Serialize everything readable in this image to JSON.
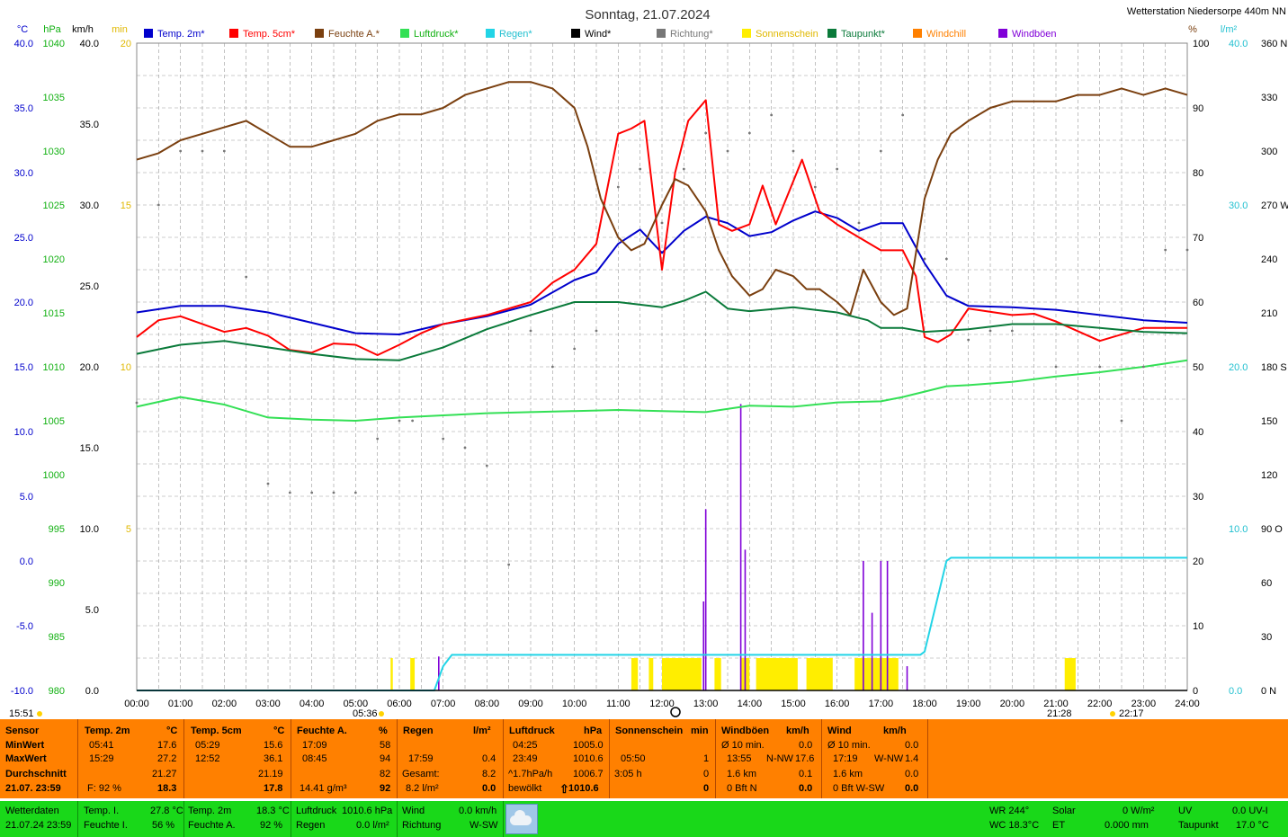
{
  "header": {
    "title": "Sonntag, 21.07.2024",
    "station": "Wetterstation Niedersorpe 440m NN"
  },
  "colors": {
    "temp2m": "#0000cc",
    "temp5cm": "#ff0000",
    "humidity": "#7a3f0f",
    "pressure": "#33e055",
    "rain": "#22d4e6",
    "wind": "#000000",
    "direction": "#777777",
    "sunshine": "#ffee00",
    "dewpoint": "#0a7a3a",
    "windchill": "#ff8000",
    "gusts": "#8000d8",
    "stats_bg": "#ff8000",
    "current_bg": "#19d819"
  },
  "legend": [
    {
      "label": "Temp. 2m*",
      "color": "#0000cc"
    },
    {
      "label": "Temp. 5cm*",
      "color": "#ff0000"
    },
    {
      "label": "Feuchte A.*",
      "color": "#7a3f0f"
    },
    {
      "label": "Luftdruck*",
      "color": "#33e055"
    },
    {
      "label": "Regen*",
      "color": "#22d4e6"
    },
    {
      "label": "Wind*",
      "color": "#000000"
    },
    {
      "label": "Richtung*",
      "color": "#777777"
    },
    {
      "label": "Sonnenschein",
      "color": "#ffee00"
    },
    {
      "label": "Taupunkt*",
      "color": "#0a7a3a"
    },
    {
      "label": "Windchill",
      "color": "#ff8000"
    },
    {
      "label": "Windböen",
      "color": "#8000d8"
    }
  ],
  "axis_units": {
    "temp": "°C",
    "pressure": "hPa",
    "wind": "km/h",
    "sun": "min",
    "humidity": "%",
    "rain": "l/m²"
  },
  "axes": {
    "temp": [
      "40.0",
      "35.0",
      "30.0",
      "25.0",
      "20.0",
      "15.0",
      "10.0",
      "5.0",
      "0.0",
      "-5.0",
      "-10.0"
    ],
    "pressure": [
      "1040",
      "1035",
      "1030",
      "1025",
      "1020",
      "1015",
      "1010",
      "1005",
      "1000",
      "995",
      "990",
      "985",
      "980"
    ],
    "wind": [
      "40.0",
      "35.0",
      "30.0",
      "25.0",
      "20.0",
      "15.0",
      "10.0",
      "5.0",
      "0.0"
    ],
    "sun": [
      "20",
      "15",
      "10",
      "5"
    ],
    "humidity": [
      "100",
      "90",
      "80",
      "70",
      "60",
      "50",
      "40",
      "30",
      "20",
      "10",
      "0"
    ],
    "rain": [
      "40.0",
      "30.0",
      "20.0",
      "10.0",
      "0.0"
    ],
    "direction": [
      "360 N",
      "330",
      "300",
      "270 W",
      "240",
      "210",
      "180 S",
      "150",
      "120",
      "90 O",
      "60",
      "30",
      "0 N"
    ],
    "time": [
      "00:00",
      "01:00",
      "02:00",
      "03:00",
      "04:00",
      "05:00",
      "06:00",
      "07:00",
      "08:00",
      "09:00",
      "10:00",
      "11:00",
      "12:00",
      "13:00",
      "14:00",
      "15:00",
      "16:00",
      "17:00",
      "18:00",
      "19:00",
      "20:00",
      "21:00",
      "22:00",
      "23:00",
      "24:00"
    ]
  },
  "sun_times": {
    "left": "15:51",
    "sunrise": "05:36",
    "moon_right": "21:28",
    "right": "22:17"
  },
  "chart_data": {
    "type": "line",
    "x_unit": "hour",
    "xlim": [
      0,
      24
    ],
    "series": [
      {
        "name": "Temp. 2m*",
        "axis": "°C",
        "ylim": [
          -10,
          40
        ],
        "x": [
          0,
          1,
          2,
          3,
          4,
          5,
          6,
          7,
          8,
          9,
          10,
          10.5,
          11,
          11.5,
          12,
          12.5,
          13,
          13.5,
          14,
          14.5,
          15,
          15.5,
          16,
          16.5,
          17,
          17.5,
          18,
          18.5,
          19,
          20,
          21,
          22,
          23,
          24
        ],
        "values": [
          19.2,
          19.7,
          19.7,
          19.2,
          18.4,
          17.6,
          17.5,
          18.3,
          18.9,
          19.8,
          21.7,
          22.3,
          24.5,
          25.6,
          23.8,
          25.5,
          26.6,
          26.1,
          25.1,
          25.4,
          26.3,
          27.0,
          26.5,
          25.5,
          26.1,
          26.1,
          23.0,
          20.5,
          19.7,
          19.6,
          19.4,
          19.0,
          18.6,
          18.4
        ]
      },
      {
        "name": "Temp. 5cm*",
        "axis": "°C",
        "ylim": [
          -10,
          40
        ],
        "x": [
          0,
          0.5,
          1,
          2,
          2.5,
          3,
          3.5,
          4,
          4.5,
          5,
          5.5,
          6,
          6.5,
          7,
          8,
          9,
          9.5,
          10,
          10.5,
          11,
          11.3,
          11.6,
          12,
          12.3,
          12.6,
          13,
          13.3,
          13.6,
          14,
          14.3,
          14.6,
          14.9,
          15.2,
          15.6,
          16,
          16.5,
          17,
          17.5,
          17.8,
          18,
          18.3,
          18.6,
          19,
          20,
          20.5,
          21,
          22,
          23,
          24
        ],
        "values": [
          17.3,
          18.6,
          18.9,
          17.7,
          18.0,
          17.4,
          16.3,
          16.1,
          16.8,
          16.7,
          15.9,
          16.7,
          17.6,
          18.3,
          19.0,
          20.0,
          21.5,
          22.5,
          24.5,
          33.0,
          33.4,
          34.0,
          22.5,
          30.0,
          34.0,
          35.6,
          26.0,
          25.5,
          26.0,
          29.0,
          26.0,
          28.5,
          31.0,
          27.0,
          26.0,
          25.0,
          24.0,
          24.0,
          22.0,
          17.3,
          16.9,
          17.5,
          19.5,
          19.0,
          19.1,
          18.5,
          17.0,
          18.0,
          18.0
        ]
      },
      {
        "name": "Feuchte A.*",
        "axis": "%",
        "ylim": [
          0,
          100
        ],
        "x": [
          0,
          0.5,
          1,
          1.5,
          2,
          2.5,
          3,
          3.5,
          4,
          4.5,
          5,
          5.5,
          6,
          6.5,
          7,
          7.5,
          8,
          8.5,
          9,
          9.5,
          10,
          10.3,
          10.6,
          11,
          11.3,
          11.6,
          12,
          12.3,
          12.6,
          13,
          13.3,
          13.6,
          14,
          14.3,
          14.6,
          15,
          15.3,
          15.6,
          16,
          16.3,
          16.6,
          17,
          17.3,
          17.6,
          18,
          18.3,
          18.6,
          19,
          19.5,
          20,
          20.5,
          21,
          21.5,
          22,
          22.5,
          23,
          23.5,
          24
        ],
        "values": [
          82.0,
          83.0,
          85.0,
          86.0,
          87.0,
          88.0,
          86.0,
          84.0,
          84.0,
          85.0,
          86.0,
          88.0,
          89.0,
          89.0,
          90.0,
          92.0,
          93.0,
          94.0,
          94.0,
          93.0,
          90.0,
          84.0,
          76.0,
          70.0,
          68.0,
          69.0,
          75.0,
          79.0,
          78.0,
          74.0,
          68.0,
          64.0,
          61.0,
          62.0,
          65.0,
          64.0,
          62.0,
          62.0,
          60.0,
          58.0,
          65.0,
          60.0,
          58.0,
          59.0,
          76.0,
          82.0,
          86.0,
          88.0,
          90.0,
          91.0,
          91.0,
          91.0,
          92.0,
          92.0,
          93.0,
          92.0,
          93.0,
          92.0
        ]
      },
      {
        "name": "Luftdruck*",
        "axis": "hPa",
        "ylim": [
          980,
          1040
        ],
        "x": [
          0,
          1,
          2,
          3,
          4,
          5,
          6,
          7,
          8,
          9,
          10,
          11,
          12,
          13,
          14,
          15,
          16,
          17,
          17.5,
          18,
          18.5,
          19,
          20,
          21,
          22,
          23,
          24
        ],
        "values": [
          1006.3,
          1007.2,
          1006.5,
          1005.3,
          1005.1,
          1005.0,
          1005.3,
          1005.5,
          1005.7,
          1005.8,
          1005.9,
          1006.0,
          1005.9,
          1005.8,
          1006.4,
          1006.3,
          1006.7,
          1006.8,
          1007.2,
          1007.7,
          1008.2,
          1008.3,
          1008.6,
          1009.1,
          1009.5,
          1010.0,
          1010.6
        ]
      },
      {
        "name": "Taupunkt*",
        "axis": "°C",
        "ylim": [
          -10,
          40
        ],
        "x": [
          0,
          1,
          2,
          3,
          4,
          5,
          6,
          7,
          8,
          9,
          10,
          11,
          12,
          12.5,
          13,
          13.5,
          14,
          15,
          16,
          16.7,
          17,
          17.5,
          18,
          19,
          20,
          21,
          22,
          23,
          24
        ],
        "values": [
          16.0,
          16.7,
          17.0,
          16.5,
          16.0,
          15.6,
          15.5,
          16.5,
          17.9,
          19.0,
          20.0,
          20.0,
          19.6,
          20.1,
          20.8,
          19.5,
          19.3,
          19.6,
          19.2,
          18.6,
          18.0,
          18.0,
          17.7,
          17.9,
          18.3,
          18.3,
          18.0,
          17.7,
          17.6
        ]
      },
      {
        "name": "Regen*",
        "axis": "l/m²",
        "ylim": [
          0,
          40
        ],
        "x": [
          0,
          6.8,
          7.0,
          7.2,
          17.9,
          18.0,
          18.5,
          18.6,
          24
        ],
        "values": [
          0,
          0,
          1.5,
          2.2,
          2.2,
          2.4,
          8.0,
          8.2,
          8.2
        ]
      },
      {
        "name": "Wind*",
        "axis": "km/h",
        "ylim": [
          0,
          40
        ],
        "x": [
          0,
          24
        ],
        "values": [
          0,
          0
        ]
      },
      {
        "name": "Richtung*",
        "axis": "°",
        "ylim": [
          0,
          360
        ],
        "x": [
          0,
          0.5,
          1,
          1.5,
          2,
          2.5,
          3,
          3.5,
          4,
          4.5,
          5,
          5.5,
          6,
          6.3,
          7,
          7.5,
          8,
          8.5,
          9,
          9.5,
          10,
          10.5,
          11,
          11.5,
          12,
          12.5,
          13,
          13.5,
          14,
          14.5,
          15,
          15.5,
          16,
          16.5,
          17,
          17.5,
          18,
          18.5,
          19,
          19.5,
          20,
          21,
          22,
          22.5,
          23,
          23.5,
          24
        ],
        "values": [
          160,
          270,
          300,
          300,
          300,
          230,
          115,
          110,
          110,
          110,
          110,
          140,
          150,
          150,
          140,
          135,
          125,
          70,
          200,
          180,
          190,
          200,
          280,
          290,
          260,
          290,
          310,
          300,
          310,
          320,
          300,
          280,
          290,
          260,
          300,
          320,
          240,
          240,
          195,
          200,
          200,
          180,
          180,
          150,
          180,
          245,
          245
        ]
      }
    ],
    "sunshine_periods": [
      [
        5.8,
        5.85
      ],
      [
        6.25,
        6.35
      ],
      [
        11.3,
        11.45
      ],
      [
        11.7,
        11.8
      ],
      [
        12.0,
        12.9
      ],
      [
        13.2,
        13.35
      ],
      [
        13.8,
        14.0
      ],
      [
        14.15,
        15.1
      ],
      [
        15.3,
        15.9
      ],
      [
        16.4,
        17.4
      ],
      [
        21.2,
        21.45
      ]
    ],
    "gusts": [
      {
        "x": 6.9,
        "value": 2.1
      },
      {
        "x": 12.95,
        "value": 5.5
      },
      {
        "x": 13.0,
        "value": 11.2
      },
      {
        "x": 13.8,
        "value": 17.7
      },
      {
        "x": 13.9,
        "value": 8.7
      },
      {
        "x": 16.6,
        "value": 8.0
      },
      {
        "x": 16.8,
        "value": 4.8
      },
      {
        "x": 17.0,
        "value": 8.0
      },
      {
        "x": 17.15,
        "value": 8.0
      },
      {
        "x": 17.6,
        "value": 1.5
      }
    ]
  },
  "stats": {
    "sensor": {
      "title": "Sensor",
      "rows": [
        "MinWert",
        "MaxWert",
        "Durchschnitt"
      ],
      "date": "21.07. 23:59"
    },
    "temp2m": {
      "title": "Temp. 2m",
      "unit": "°C",
      "min_time": "05:41",
      "min": "17.6",
      "max_time": "15:29",
      "max": "27.2",
      "avg": "21.27",
      "extra": "F: 92 %",
      "current": "18.3"
    },
    "temp5cm": {
      "title": "Temp. 5cm",
      "unit": "°C",
      "min_time": "05:29",
      "min": "15.6",
      "max_time": "12:52",
      "max": "36.1",
      "avg": "21.19",
      "current": "17.8"
    },
    "humidity": {
      "title": "Feuchte A.",
      "unit": "%",
      "min_time": "17:09",
      "min": "58",
      "max_time": "08:45",
      "max": "94",
      "avg": "82",
      "abs": "14.41 g/m³",
      "current": "92"
    },
    "rain": {
      "title": "Regen",
      "unit": "l/m²",
      "max_time": "17:59",
      "max": "0.4",
      "total_label": "Gesamt:",
      "total": "8.2",
      "rate": "8.2 l/m²",
      "current": "0.0"
    },
    "pressure": {
      "title": "Luftdruck",
      "unit": "hPa",
      "min_time": "04:25",
      "min": "1005.0",
      "max_time": "23:49",
      "max": "1010.6",
      "trend_label": "^1.7hPa/h",
      "trend": "1006.7",
      "forecast": "bewölkt",
      "current_arrow": "⇧",
      "current": "1010.6"
    },
    "sunshine": {
      "title": "Sonnenschein",
      "unit": "min",
      "max_time": "05:50",
      "max": "1",
      "total": "3:05 h",
      "total_val": "0",
      "current": "0"
    },
    "gusts": {
      "title": "Windböen",
      "unit": "km/h",
      "r1_label": "Ø 10 min.",
      "r1": "0.0",
      "r2_time": "13:55",
      "r2_dir": "N-NW",
      "r2": "17.6",
      "r3_label": "1.6 km",
      "r3": "0.1",
      "r4_label": "0 Bft N",
      "r4": "0.0"
    },
    "wind": {
      "title": "Wind",
      "unit": "km/h",
      "r1_label": "Ø 10 min.",
      "r1": "0.0",
      "r2_time": "17:19",
      "r2_dir": "W-NW",
      "r2": "1.4",
      "r3_label": "1.6 km",
      "r3": "0.0",
      "r4_label": "0 Bft W-SW",
      "r4": "0.0"
    }
  },
  "current": {
    "label": "Wetterdaten",
    "datetime": "21.07.24 23:59",
    "temp_i_label": "Temp. I.",
    "temp_i": "27.8 °C",
    "hum_i_label": "Feuchte I.",
    "hum_i": "56 %",
    "temp2m_label": "Temp. 2m",
    "temp2m": "18.3 °C",
    "hum_a_label": "Feuchte A.",
    "hum_a": "92 %",
    "pressure_label": "Luftdruck",
    "pressure": "1010.6 hPa",
    "rain_label": "Regen",
    "rain": "0.0 l/m²",
    "wind_label": "Wind",
    "wind": "0.0 km/h",
    "dir_label": "Richtung",
    "dir": "W-SW",
    "wr": "WR 244°",
    "wc": "WC 18.3°C",
    "solar_label": "Solar",
    "solar": "0 W/m²",
    "et_label": "ET",
    "et": "0.000 mm",
    "uv_label": "UV",
    "uv": "0.0 UV-I",
    "dew_label": "Taupunkt",
    "dew": "17.0 °C"
  }
}
